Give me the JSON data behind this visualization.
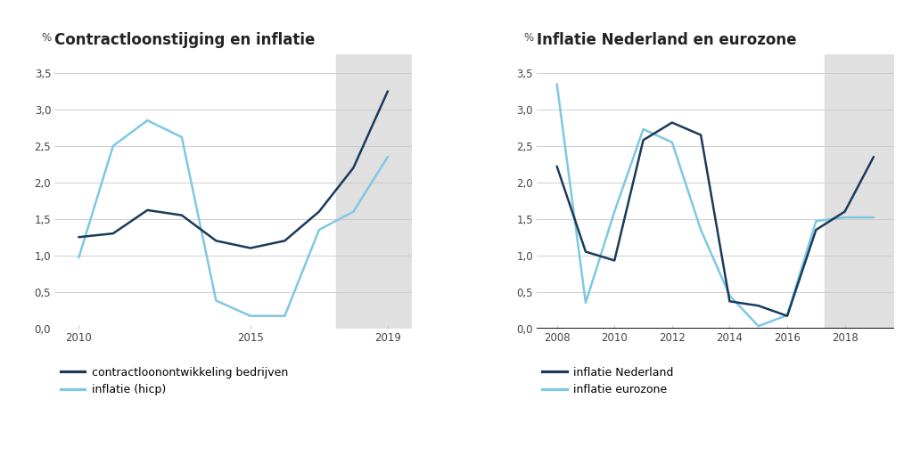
{
  "chart1": {
    "title": "Contractloonstijging en inflatie",
    "ylabel": "%",
    "ylim": [
      0.0,
      3.75
    ],
    "yticks": [
      0.0,
      0.5,
      1.0,
      1.5,
      2.0,
      2.5,
      3.0,
      3.5
    ],
    "ytick_labels": [
      "0,0",
      "0,5",
      "1,0",
      "1,5",
      "2,0",
      "2,5",
      "3,0",
      "3,5"
    ],
    "xlim": [
      2009.3,
      2019.7
    ],
    "xticks": [
      2010,
      2015,
      2019
    ],
    "shade_start": 2017.5,
    "shade_end": 2019.7,
    "series1_label": "contractloonontwikkeling bedrijven",
    "series1_color": "#1a3a5c",
    "series1_x": [
      2010,
      2011,
      2012,
      2013,
      2014,
      2015,
      2016,
      2017,
      2018,
      2019
    ],
    "series1_y": [
      1.25,
      1.3,
      1.62,
      1.55,
      1.2,
      1.1,
      1.2,
      1.6,
      2.2,
      3.25
    ],
    "series2_label": "inflatie (hicp)",
    "series2_color": "#7ec8e3",
    "series2_x": [
      2010,
      2011,
      2012,
      2013,
      2014,
      2015,
      2016,
      2017,
      2018,
      2019
    ],
    "series2_y": [
      0.97,
      2.5,
      2.85,
      2.62,
      0.38,
      0.17,
      0.17,
      1.35,
      1.6,
      2.35
    ],
    "zero_line": false
  },
  "chart2": {
    "title": "Inflatie Nederland en eurozone",
    "ylabel": "%",
    "ylim": [
      0.0,
      3.75
    ],
    "yticks": [
      0.0,
      0.5,
      1.0,
      1.5,
      2.0,
      2.5,
      3.0,
      3.5
    ],
    "ytick_labels": [
      "0,0",
      "0,5",
      "1,0",
      "1,5",
      "2,0",
      "2,5",
      "3,0",
      "3,5"
    ],
    "xlim": [
      2007.3,
      2019.7
    ],
    "xticks": [
      2008,
      2010,
      2012,
      2014,
      2016,
      2018
    ],
    "shade_start": 2017.3,
    "shade_end": 2019.7,
    "series1_label": "inflatie Nederland",
    "series1_color": "#1a3a5c",
    "series1_x": [
      2008,
      2009,
      2010,
      2011,
      2012,
      2013,
      2014,
      2015,
      2016,
      2017,
      2018,
      2019
    ],
    "series1_y": [
      2.22,
      1.05,
      0.93,
      2.58,
      2.82,
      2.65,
      0.37,
      0.31,
      0.17,
      1.35,
      1.6,
      2.35
    ],
    "series2_label": "inflatie eurozone",
    "series2_color": "#7ec8e3",
    "series2_x": [
      2008,
      2009,
      2010,
      2011,
      2012,
      2013,
      2014,
      2015,
      2016,
      2017,
      2018,
      2019
    ],
    "series2_y": [
      3.35,
      0.35,
      1.6,
      2.73,
      2.55,
      1.35,
      0.45,
      0.03,
      0.18,
      1.47,
      1.52,
      1.52
    ],
    "zero_line": true
  },
  "background_color": "#ffffff",
  "grid_color": "#c8c8c8",
  "title_fontsize": 12,
  "axis_fontsize": 8.5,
  "legend_fontsize": 9,
  "line_width": 1.8,
  "shade_color": "#e0e0e0"
}
